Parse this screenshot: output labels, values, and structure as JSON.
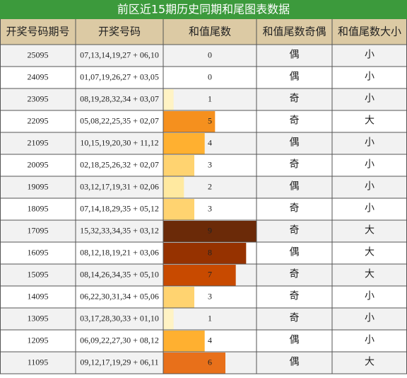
{
  "header": {
    "title": "前区近15期历史同期和尾图表数据"
  },
  "table": {
    "columns": [
      "开奖号码期号",
      "开奖号码",
      "和值尾数",
      "和值尾数奇偶",
      "和值尾数大小"
    ],
    "rows": [
      [
        "25095",
        "07,13,14,19,27 + 06,10",
        0,
        "偶",
        "小"
      ],
      [
        "24095",
        "01,07,19,26,27 + 03,05",
        0,
        "偶",
        "小"
      ],
      [
        "23095",
        "08,19,28,32,34 + 03,07",
        1,
        "奇",
        "小"
      ],
      [
        "22095",
        "05,08,22,25,35 + 02,07",
        5,
        "奇",
        "大"
      ],
      [
        "21095",
        "10,15,19,20,30 + 11,12",
        4,
        "偶",
        "小"
      ],
      [
        "20095",
        "02,18,25,26,32 + 02,07",
        3,
        "奇",
        "小"
      ],
      [
        "19095",
        "03,12,17,19,31 + 02,06",
        2,
        "偶",
        "小"
      ],
      [
        "18095",
        "07,14,18,29,35 + 05,12",
        3,
        "奇",
        "小"
      ],
      [
        "17095",
        "15,32,33,34,35 + 03,12",
        9,
        "奇",
        "大"
      ],
      [
        "16095",
        "08,12,18,19,21 + 03,06",
        8,
        "偶",
        "大"
      ],
      [
        "15095",
        "08,14,26,34,35 + 05,10",
        7,
        "奇",
        "大"
      ],
      [
        "14095",
        "06,22,30,31,34 + 05,06",
        3,
        "奇",
        "小"
      ],
      [
        "13095",
        "03,17,28,30,33 + 01,10",
        1,
        "奇",
        "小"
      ],
      [
        "12095",
        "06,09,22,27,30 + 08,12",
        4,
        "偶",
        "小"
      ],
      [
        "11095",
        "09,12,17,19,29 + 06,11",
        6,
        "偶",
        "大"
      ]
    ],
    "bar_colors": [
      "#ffffff",
      "#ffffff",
      "#fff3c4",
      "#f5901e",
      "#ffb030",
      "#ffd370",
      "#ffe9a0",
      "#ffd370",
      "#6b2a08",
      "#963200",
      "#c84a00",
      "#ffd370",
      "#fff3c4",
      "#ffb030",
      "#e8701a"
    ]
  }
}
